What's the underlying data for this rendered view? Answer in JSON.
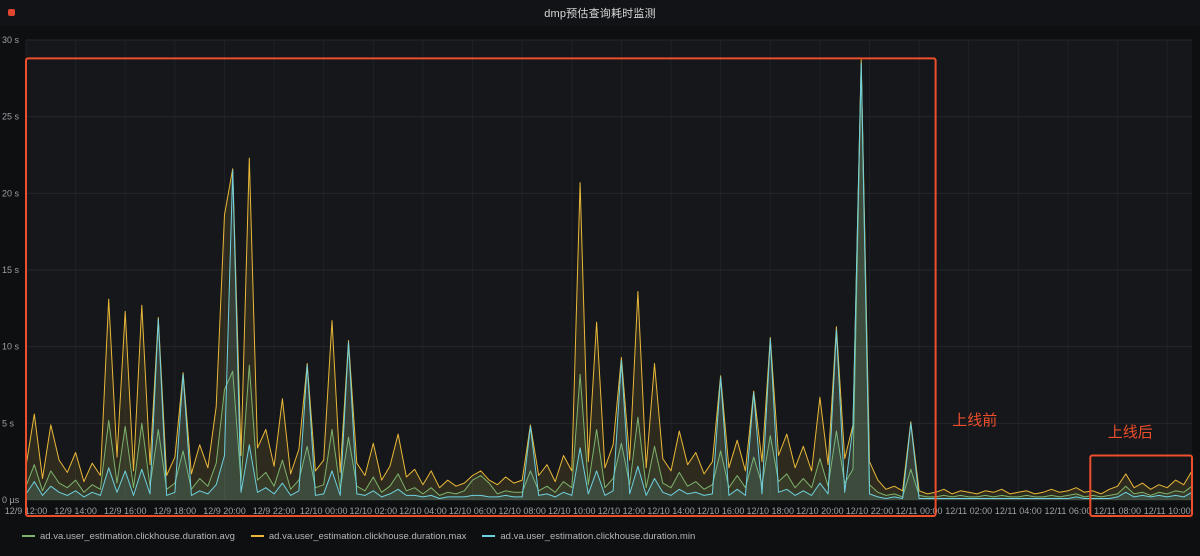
{
  "panel": {
    "title": "dmp预估查询耗时监测"
  },
  "chart_data": {
    "type": "line",
    "title": "dmp预估查询耗时监测",
    "x_start": "12/9 12:00",
    "x_end": "12/11 11:00",
    "point_interval_minutes": 20,
    "x_label_every": 6,
    "x_labels": [
      "12/9 12:00",
      "12/9 14:00",
      "12/9 16:00",
      "12/9 18:00",
      "12/9 20:00",
      "12/9 22:00",
      "12/10 00:00",
      "12/10 02:00",
      "12/10 04:00",
      "12/10 06:00",
      "12/10 08:00",
      "12/10 10:00",
      "12/10 12:00",
      "12/10 14:00",
      "12/10 16:00",
      "12/10 18:00",
      "12/10 20:00",
      "12/10 22:00",
      "12/11 00:00",
      "12/11 02:00",
      "12/11 04:00",
      "12/11 06:00",
      "12/11 08:00",
      "12/11 10:00"
    ],
    "y_unit": "seconds",
    "y_max": 30,
    "y_ticks": [
      0,
      5,
      10,
      15,
      20,
      25,
      30
    ],
    "y_tick_labels": [
      "0 µs",
      "5 s",
      "10 s",
      "15 s",
      "20 s",
      "25 s",
      "30 s"
    ],
    "grid": true,
    "legend_position": "bottom-left",
    "colors": {
      "background": "#0e0f11",
      "plot_background": "#15171a",
      "grid_h": "#24272c",
      "grid_v": "#1f2226",
      "axis_text": "#9aa0a6",
      "annotation": "#ED4E2B"
    },
    "series": [
      {
        "name": "ad.va.user_estimation.clickhouse.duration.avg",
        "color": "#7EB26D",
        "values": [
          0.9,
          2.3,
          0.6,
          1.9,
          1.1,
          0.8,
          1.3,
          0.5,
          1.0,
          0.7,
          5.2,
          1.1,
          4.8,
          0.8,
          5.0,
          0.9,
          4.6,
          0.7,
          1.1,
          3.2,
          0.7,
          1.4,
          0.9,
          2.4,
          7.2,
          8.4,
          1.2,
          8.8,
          1.3,
          1.8,
          0.9,
          2.6,
          0.7,
          1.3,
          3.5,
          0.8,
          1.0,
          4.6,
          0.7,
          4.1,
          0.9,
          0.6,
          1.5,
          0.5,
          0.9,
          1.7,
          0.6,
          0.8,
          0.4,
          0.8,
          0.3,
          0.5,
          0.4,
          0.6,
          1.3,
          1.6,
          1.1,
          0.4,
          0.6,
          0.5,
          0.5,
          1.9,
          0.6,
          0.9,
          0.5,
          1.2,
          0.8,
          8.2,
          1.0,
          4.6,
          0.8,
          1.4,
          3.7,
          1.0,
          5.4,
          0.8,
          3.5,
          1.1,
          0.8,
          1.8,
          0.9,
          1.2,
          0.7,
          1.0,
          3.2,
          0.8,
          1.6,
          0.8,
          2.8,
          1.0,
          4.2,
          1.2,
          1.7,
          0.8,
          1.4,
          0.8,
          2.7,
          0.9,
          4.5,
          1.1,
          2.0,
          28.4,
          1.0,
          0.5,
          0.3,
          0.4,
          0.2,
          2.0,
          0.3,
          0.2,
          0.2,
          0.3,
          0.2,
          0.3,
          0.2,
          0.2,
          0.3,
          0.2,
          0.3,
          0.2,
          0.2,
          0.3,
          0.2,
          0.2,
          0.3,
          0.2,
          0.3,
          0.4,
          0.2,
          0.3,
          0.2,
          0.3,
          0.4,
          0.9,
          0.4,
          0.5,
          0.3,
          0.5,
          0.4,
          0.6,
          0.5,
          0.9
        ]
      },
      {
        "name": "ad.va.user_estimation.clickhouse.duration.max",
        "color": "#EAB839",
        "values": [
          2.2,
          5.6,
          1.4,
          4.9,
          2.6,
          1.8,
          3.1,
          1.2,
          2.4,
          1.6,
          13.1,
          2.8,
          12.3,
          1.9,
          12.7,
          2.3,
          11.9,
          1.6,
          2.8,
          8.3,
          1.7,
          3.6,
          2.1,
          6.1,
          18.6,
          21.6,
          2.9,
          22.3,
          3.4,
          4.6,
          2.2,
          6.6,
          1.7,
          3.3,
          8.9,
          1.9,
          2.6,
          11.7,
          1.8,
          10.4,
          2.4,
          1.6,
          3.7,
          1.3,
          2.2,
          4.3,
          1.5,
          2.0,
          1.0,
          1.9,
          0.8,
          1.3,
          0.9,
          1.1,
          1.6,
          1.9,
          1.3,
          1.0,
          1.5,
          1.1,
          1.3,
          4.9,
          1.6,
          2.3,
          1.2,
          2.9,
          1.9,
          20.7,
          2.5,
          11.6,
          2.1,
          3.6,
          9.3,
          2.6,
          13.6,
          2.1,
          8.9,
          2.7,
          1.9,
          4.5,
          2.3,
          3.1,
          1.7,
          2.5,
          8.1,
          2.1,
          3.9,
          1.9,
          7.1,
          2.5,
          10.6,
          2.9,
          4.3,
          2.1,
          3.5,
          1.9,
          6.7,
          2.3,
          11.3,
          2.7,
          4.9,
          28.7,
          2.5,
          1.3,
          0.7,
          0.9,
          0.6,
          5.1,
          0.6,
          0.4,
          0.5,
          0.7,
          0.4,
          0.6,
          0.5,
          0.4,
          0.6,
          0.5,
          0.7,
          0.4,
          0.5,
          0.6,
          0.4,
          0.5,
          0.7,
          0.5,
          0.6,
          0.8,
          0.5,
          0.6,
          0.4,
          0.7,
          0.9,
          1.7,
          0.8,
          1.1,
          0.7,
          1.0,
          0.8,
          1.3,
          1.0,
          1.9
        ]
      },
      {
        "name": "ad.va.user_estimation.clickhouse.duration.min",
        "color": "#6ED0E0",
        "values": [
          0.4,
          1.2,
          0.3,
          0.9,
          0.5,
          0.3,
          0.6,
          0.2,
          0.5,
          0.3,
          2.1,
          0.5,
          1.9,
          0.3,
          2.0,
          0.4,
          11.8,
          0.3,
          0.5,
          8.2,
          0.3,
          0.6,
          0.4,
          1.0,
          2.9,
          21.5,
          0.5,
          3.6,
          0.5,
          0.8,
          0.4,
          1.1,
          0.3,
          0.6,
          8.8,
          0.3,
          0.4,
          1.9,
          0.3,
          10.3,
          0.4,
          0.3,
          0.6,
          0.2,
          0.4,
          0.7,
          0.3,
          0.3,
          0.2,
          0.3,
          0.1,
          0.2,
          0.2,
          0.2,
          0.3,
          0.3,
          0.2,
          0.2,
          0.3,
          0.2,
          0.2,
          4.8,
          0.3,
          0.4,
          0.2,
          0.5,
          0.3,
          3.4,
          0.4,
          1.9,
          0.3,
          0.6,
          9.1,
          0.4,
          2.2,
          0.3,
          1.4,
          0.5,
          0.3,
          0.7,
          0.4,
          0.5,
          0.3,
          0.4,
          8.0,
          0.3,
          0.7,
          0.3,
          7.0,
          0.4,
          10.5,
          0.5,
          0.7,
          0.3,
          0.6,
          0.3,
          1.1,
          0.4,
          11.1,
          0.5,
          4.8,
          28.5,
          0.4,
          0.2,
          0.1,
          0.2,
          0.1,
          5.0,
          0.1,
          0.1,
          0.1,
          0.1,
          0.1,
          0.1,
          0.1,
          0.1,
          0.1,
          0.1,
          0.1,
          0.1,
          0.1,
          0.1,
          0.1,
          0.1,
          0.1,
          0.1,
          0.1,
          0.2,
          0.1,
          0.1,
          0.1,
          0.1,
          0.2,
          0.5,
          0.2,
          0.3,
          0.2,
          0.3,
          0.2,
          0.3,
          0.2,
          0.5
        ]
      }
    ],
    "annotations": {
      "color": "#ED4E2B",
      "boxes": [
        {
          "label": "上线前",
          "from_index": 0,
          "to_index": 110,
          "top_value": 28.8,
          "label_index": 112,
          "label_value": 4.9
        },
        {
          "label": "上线后",
          "from_index": 128.7,
          "to_index": 141,
          "top_value": 2.9,
          "label_index": 130.8,
          "label_value": 4.1
        }
      ]
    }
  }
}
